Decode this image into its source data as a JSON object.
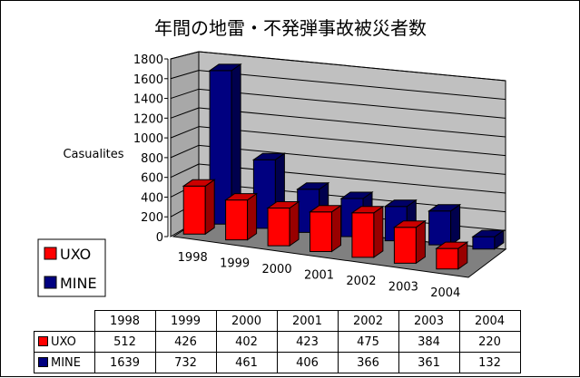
{
  "chart_data": {
    "type": "bar",
    "title": "年間の地雷・不発弾事故被災者数",
    "ylabel": "Casualites",
    "ylim": [
      0,
      1800
    ],
    "yticks": [
      0,
      200,
      400,
      600,
      800,
      1000,
      1200,
      1400,
      1600,
      1800
    ],
    "categories": [
      "1998",
      "1999",
      "2000",
      "2001",
      "2002",
      "2003",
      "2004"
    ],
    "series": [
      {
        "name": "UXO",
        "color": "#ff0000",
        "values": [
          512,
          426,
          402,
          423,
          475,
          384,
          220
        ]
      },
      {
        "name": "MINE",
        "color": "#000080",
        "values": [
          1639,
          732,
          461,
          406,
          366,
          361,
          132
        ]
      }
    ],
    "legend": "left",
    "grid": true,
    "projection": "3d"
  }
}
